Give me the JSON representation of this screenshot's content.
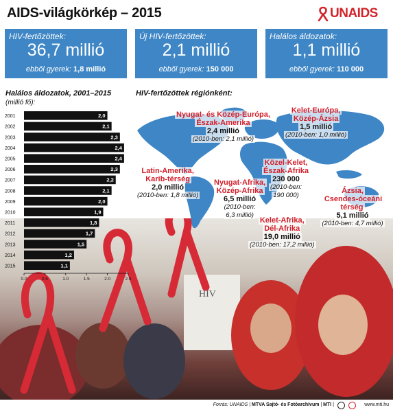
{
  "header": {
    "title": "AIDS-világkörkép – 2015",
    "logo_text": "UNAIDS"
  },
  "stats": [
    {
      "label": "HIV-fertőzöttek:",
      "value": "36,7 millió",
      "sub_label": "ebből gyerek:",
      "sub_value": "1,8 millió"
    },
    {
      "label": "Új HIV-fertőzöttek:",
      "value": "2,1 millió",
      "sub_label": "ebből gyerek:",
      "sub_value": "150 000"
    },
    {
      "label": "Halálos áldozatok:",
      "value": "1,1 millió",
      "sub_label": "ebből gyerek:",
      "sub_value": "110 000"
    }
  ],
  "chart_data": {
    "type": "bar",
    "orientation": "horizontal",
    "title": "Halálos áldozatok, 2001–2015",
    "unit_label": "(millió fő):",
    "categories": [
      "2001",
      "2002",
      "2003",
      "2004",
      "2005",
      "2006",
      "2007",
      "2008",
      "2009",
      "2010",
      "2011",
      "2012",
      "2013",
      "2014",
      "2015"
    ],
    "values": [
      2.0,
      2.1,
      2.3,
      2.4,
      2.4,
      2.3,
      2.2,
      2.1,
      2.0,
      1.9,
      1.8,
      1.7,
      1.5,
      1.2,
      1.1
    ],
    "value_labels": [
      "2,0",
      "2,1",
      "2,3",
      "2,4",
      "2,4",
      "2,3",
      "2,2",
      "2,1",
      "2,0",
      "1,9",
      "1,8",
      "1,7",
      "1,5",
      "1,2",
      "1,1"
    ],
    "x_ticks": [
      "0,0",
      "0,5",
      "1,0",
      "1,5",
      "2,0",
      "2,5"
    ],
    "xlim": [
      0,
      2.5
    ],
    "bar_color": "#111111",
    "grid": false
  },
  "map": {
    "title": "HIV-fertőzöttek régiónként:",
    "regions": [
      {
        "name": [
          "Nyugat- és Közép-Európa,",
          "Észak-Amerika"
        ],
        "value": "2,4 millió",
        "prev": "(2010-ben: 2,1 millió)"
      },
      {
        "name": [
          "Kelet-Európa,",
          "Közép-Ázsia"
        ],
        "value": "1,5 millió",
        "prev": "(2010-ben: 1,0 millió)"
      },
      {
        "name": [
          "Latin-Amerika,",
          "Karib-térség"
        ],
        "value": "2,0 millió",
        "prev": "(2010-ben: 1,8 millió)"
      },
      {
        "name": [
          "Közel-Kelet,",
          "Észak-Afrika"
        ],
        "value": "230 000",
        "prev": [
          "(2010-ben:",
          "190 000)"
        ]
      },
      {
        "name": [
          "Nyugat-Afrika,",
          "Közép-Afrika"
        ],
        "value": "6,5 millió",
        "prev": [
          "(2010-ben:",
          "6,3 millió)"
        ]
      },
      {
        "name": [
          "Ázsia,",
          "Csendes-óceáni térség"
        ],
        "value": "5,1 millió",
        "prev": "(2010-ben: 4,7 millió)"
      },
      {
        "name": [
          "Kelet-Afrika,",
          "Dél-Afrika"
        ],
        "value": "19,0 millió",
        "prev": "(2010-ben: 17,2 millió)"
      }
    ]
  },
  "colors": {
    "stat_box": "#3e86c5",
    "map_fill": "#3e86c5",
    "region_name": "#d11f2a",
    "ribbon": "#d62a36"
  },
  "photo": {
    "banner_text": "HIV"
  },
  "footer": {
    "source_label": "Forrás:",
    "source": "UNAIDS",
    "agency": "MTVA Sajtó- és Fotóarchívum",
    "agency_short": "MTI",
    "site": "www.mti.hu"
  }
}
